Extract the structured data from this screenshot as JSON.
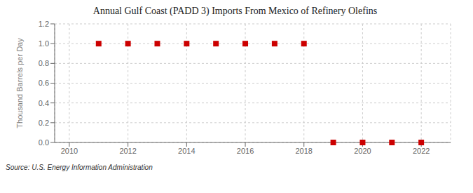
{
  "chart_data": {
    "type": "scatter",
    "title": "Annual Gulf Coast (PADD 3) Imports From Mexico of Refinery Olefins",
    "y_label": "Thousand Barrels per Day",
    "annotations": [
      "Source: U.S. Energy Information Administration"
    ],
    "x": [
      2011,
      2012,
      2013,
      2014,
      2015,
      2016,
      2017,
      2018,
      2019,
      2020,
      2021,
      2022
    ],
    "values": [
      1.0,
      1.0,
      1.0,
      1.0,
      1.0,
      1.0,
      1.0,
      1.0,
      0.0,
      0.0,
      0.0,
      0.0
    ],
    "color": "#cc0000",
    "marker": "square",
    "xlim": [
      2009.5,
      2023.0
    ],
    "ylim": [
      0.0,
      1.2
    ],
    "xticks": [
      2010,
      2012,
      2014,
      2016,
      2018,
      2020,
      2022
    ],
    "yticks": [
      {
        "value": 0,
        "label": "0.0"
      },
      0.2,
      0.4,
      0.6,
      0.8,
      {
        "value": 1,
        "label": "1.0"
      },
      1.2
    ],
    "grid": true
  }
}
